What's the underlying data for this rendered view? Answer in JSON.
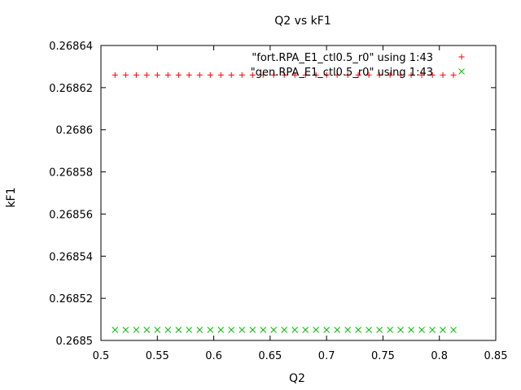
{
  "chart_data": {
    "type": "scatter",
    "title": "Q2 vs kF1",
    "xlabel": "Q2",
    "ylabel": "kF1",
    "xlim": [
      0.5,
      0.85
    ],
    "ylim": [
      0.2685,
      0.26864
    ],
    "xticks": [
      "0.5",
      "0.55",
      "0.6",
      "0.65",
      "0.7",
      "0.75",
      "0.8",
      "0.85"
    ],
    "yticks": [
      "0.2685",
      "0.26852",
      "0.26854",
      "0.26856",
      "0.26858",
      "0.2686",
      "0.26862",
      "0.26864"
    ],
    "grid": false,
    "legend_position": "top-right",
    "series": [
      {
        "name": "\"fort.RPA_E1_ctl0.5_r0\" using 1:43",
        "marker": "plus",
        "color": "#ff0000",
        "x": [
          0.5125,
          0.5219,
          0.5313,
          0.5406,
          0.55,
          0.5594,
          0.5688,
          0.5781,
          0.5875,
          0.5969,
          0.6063,
          0.6156,
          0.625,
          0.6344,
          0.6438,
          0.6531,
          0.6625,
          0.6719,
          0.6813,
          0.6906,
          0.7,
          0.7094,
          0.7188,
          0.7281,
          0.7375,
          0.7469,
          0.7563,
          0.7656,
          0.775,
          0.7844,
          0.7938,
          0.8031,
          0.8125
        ],
        "y": [
          0.268626,
          0.268626,
          0.268626,
          0.268626,
          0.268626,
          0.268626,
          0.268626,
          0.268626,
          0.268626,
          0.268626,
          0.268626,
          0.268626,
          0.268626,
          0.268626,
          0.268626,
          0.268626,
          0.268626,
          0.268626,
          0.268626,
          0.268626,
          0.268626,
          0.268626,
          0.268626,
          0.268626,
          0.268626,
          0.268626,
          0.268626,
          0.268626,
          0.268626,
          0.268626,
          0.268626,
          0.268626,
          0.268626
        ]
      },
      {
        "name": "\"gen.RPA_E1_ctl0.5_r0\" using 1:43",
        "marker": "cross",
        "color": "#00c000",
        "x": [
          0.5125,
          0.5219,
          0.5313,
          0.5406,
          0.55,
          0.5594,
          0.5688,
          0.5781,
          0.5875,
          0.5969,
          0.6063,
          0.6156,
          0.625,
          0.6344,
          0.6438,
          0.6531,
          0.6625,
          0.6719,
          0.6813,
          0.6906,
          0.7,
          0.7094,
          0.7188,
          0.7281,
          0.7375,
          0.7469,
          0.7563,
          0.7656,
          0.775,
          0.7844,
          0.7938,
          0.8031,
          0.8125
        ],
        "y": [
          0.268505,
          0.268505,
          0.268505,
          0.268505,
          0.268505,
          0.268505,
          0.268505,
          0.268505,
          0.268505,
          0.268505,
          0.268505,
          0.268505,
          0.268505,
          0.268505,
          0.268505,
          0.268505,
          0.268505,
          0.268505,
          0.268505,
          0.268505,
          0.268505,
          0.268505,
          0.268505,
          0.268505,
          0.268505,
          0.268505,
          0.268505,
          0.268505,
          0.268505,
          0.268505,
          0.268505,
          0.268505,
          0.268505
        ]
      }
    ]
  }
}
